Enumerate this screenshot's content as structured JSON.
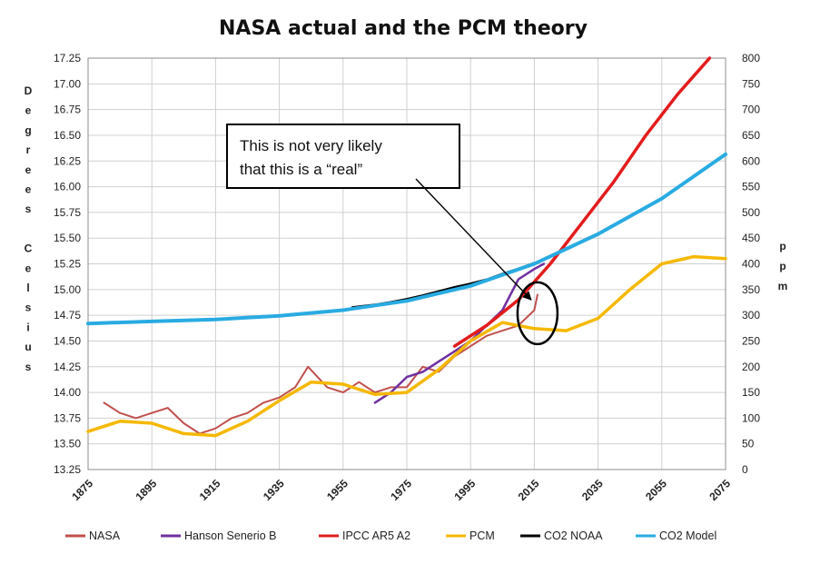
{
  "chart_data": {
    "type": "line",
    "title": "NASA actual and the PCM theory",
    "ylabel_left_letters": [
      "D",
      "e",
      "g",
      "r",
      "e",
      "e",
      "s",
      "",
      "C",
      "e",
      "l",
      "s",
      "i",
      "u",
      "s"
    ],
    "ylabel_right_letters": [
      "p",
      "p",
      "m"
    ],
    "x_ticks": [
      "1875",
      "1895",
      "1915",
      "1935",
      "1955",
      "1975",
      "1995",
      "2015",
      "2035",
      "2055",
      "2075"
    ],
    "xlim": [
      1875,
      2075
    ],
    "ylim_left": [
      13.25,
      17.25
    ],
    "y_ticks_left": [
      "13.25",
      "13.50",
      "13.75",
      "14.00",
      "14.25",
      "14.50",
      "14.75",
      "15.00",
      "15.25",
      "15.50",
      "15.75",
      "16.00",
      "16.25",
      "16.50",
      "16.75",
      "17.00",
      "17.25"
    ],
    "ylim_right": [
      0,
      800
    ],
    "y_ticks_right": [
      "0",
      "50",
      "100",
      "150",
      "200",
      "250",
      "300",
      "350",
      "400",
      "450",
      "500",
      "550",
      "600",
      "650",
      "700",
      "750",
      "800"
    ],
    "grid": true,
    "legend_position": "bottom",
    "annotation": {
      "lines": [
        "This is not very likely",
        "that this is a “real”"
      ],
      "arrow_to": {
        "x": 2014,
        "y": 14.9
      }
    },
    "highlight_ellipse": {
      "x": 2016,
      "y": 14.77
    },
    "series": [
      {
        "name": "NASA",
        "color": "#c0504d",
        "axis": "left",
        "x": [
          1880,
          1885,
          1890,
          1895,
          1900,
          1905,
          1910,
          1915,
          1920,
          1925,
          1930,
          1935,
          1940,
          1944,
          1950,
          1955,
          1960,
          1965,
          1970,
          1975,
          1980,
          1985,
          1990,
          1995,
          2000,
          2005,
          2010,
          2015,
          2016
        ],
        "y": [
          13.9,
          13.8,
          13.75,
          13.8,
          13.85,
          13.7,
          13.6,
          13.65,
          13.75,
          13.8,
          13.9,
          13.95,
          14.05,
          14.25,
          14.05,
          14.0,
          14.1,
          14.0,
          14.05,
          14.05,
          14.25,
          14.2,
          14.35,
          14.45,
          14.55,
          14.6,
          14.65,
          14.8,
          14.95
        ]
      },
      {
        "name": "Hanson Senerio B",
        "color": "#7030a0",
        "axis": "left",
        "x": [
          1965,
          1970,
          1975,
          1980,
          1985,
          1990,
          1995,
          2000,
          2005,
          2010,
          2015,
          2018
        ],
        "y": [
          13.9,
          14.0,
          14.15,
          14.2,
          14.3,
          14.4,
          14.5,
          14.65,
          14.8,
          15.1,
          15.2,
          15.25
        ]
      },
      {
        "name": "IPCC AR5 A2",
        "color": "#e31c1c",
        "axis": "left",
        "x": [
          1990,
          2000,
          2010,
          2020,
          2030,
          2040,
          2050,
          2060,
          2070
        ],
        "y": [
          14.45,
          14.65,
          14.9,
          15.25,
          15.65,
          16.05,
          16.5,
          16.9,
          17.25
        ]
      },
      {
        "name": "PCM",
        "color": "#f5b800",
        "axis": "left",
        "x": [
          1875,
          1885,
          1895,
          1905,
          1915,
          1925,
          1935,
          1945,
          1955,
          1965,
          1975,
          1985,
          1995,
          2005,
          2015,
          2025,
          2035,
          2045,
          2055,
          2065,
          2075
        ],
        "y": [
          13.62,
          13.72,
          13.7,
          13.6,
          13.58,
          13.72,
          13.92,
          14.1,
          14.08,
          13.98,
          14.0,
          14.22,
          14.5,
          14.68,
          14.62,
          14.6,
          14.72,
          15.0,
          15.25,
          15.32,
          15.3
        ]
      },
      {
        "name": "CO2 NOAA",
        "color": "#000000",
        "axis": "right",
        "x": [
          1958,
          1965,
          1970,
          1975,
          1980,
          1985,
          1990,
          1995,
          2000,
          2005,
          2010,
          2015
        ],
        "y": [
          315,
          320,
          325,
          331,
          338,
          346,
          354,
          361,
          369,
          380,
          390,
          401
        ]
      },
      {
        "name": "CO2 Model",
        "color": "#29abe2",
        "axis": "right",
        "x": [
          1875,
          1895,
          1915,
          1935,
          1955,
          1975,
          1995,
          2015,
          2035,
          2055,
          2075
        ],
        "y": [
          284,
          288,
          292,
          299,
          310,
          328,
          357,
          400,
          458,
          527,
          613
        ]
      }
    ]
  }
}
